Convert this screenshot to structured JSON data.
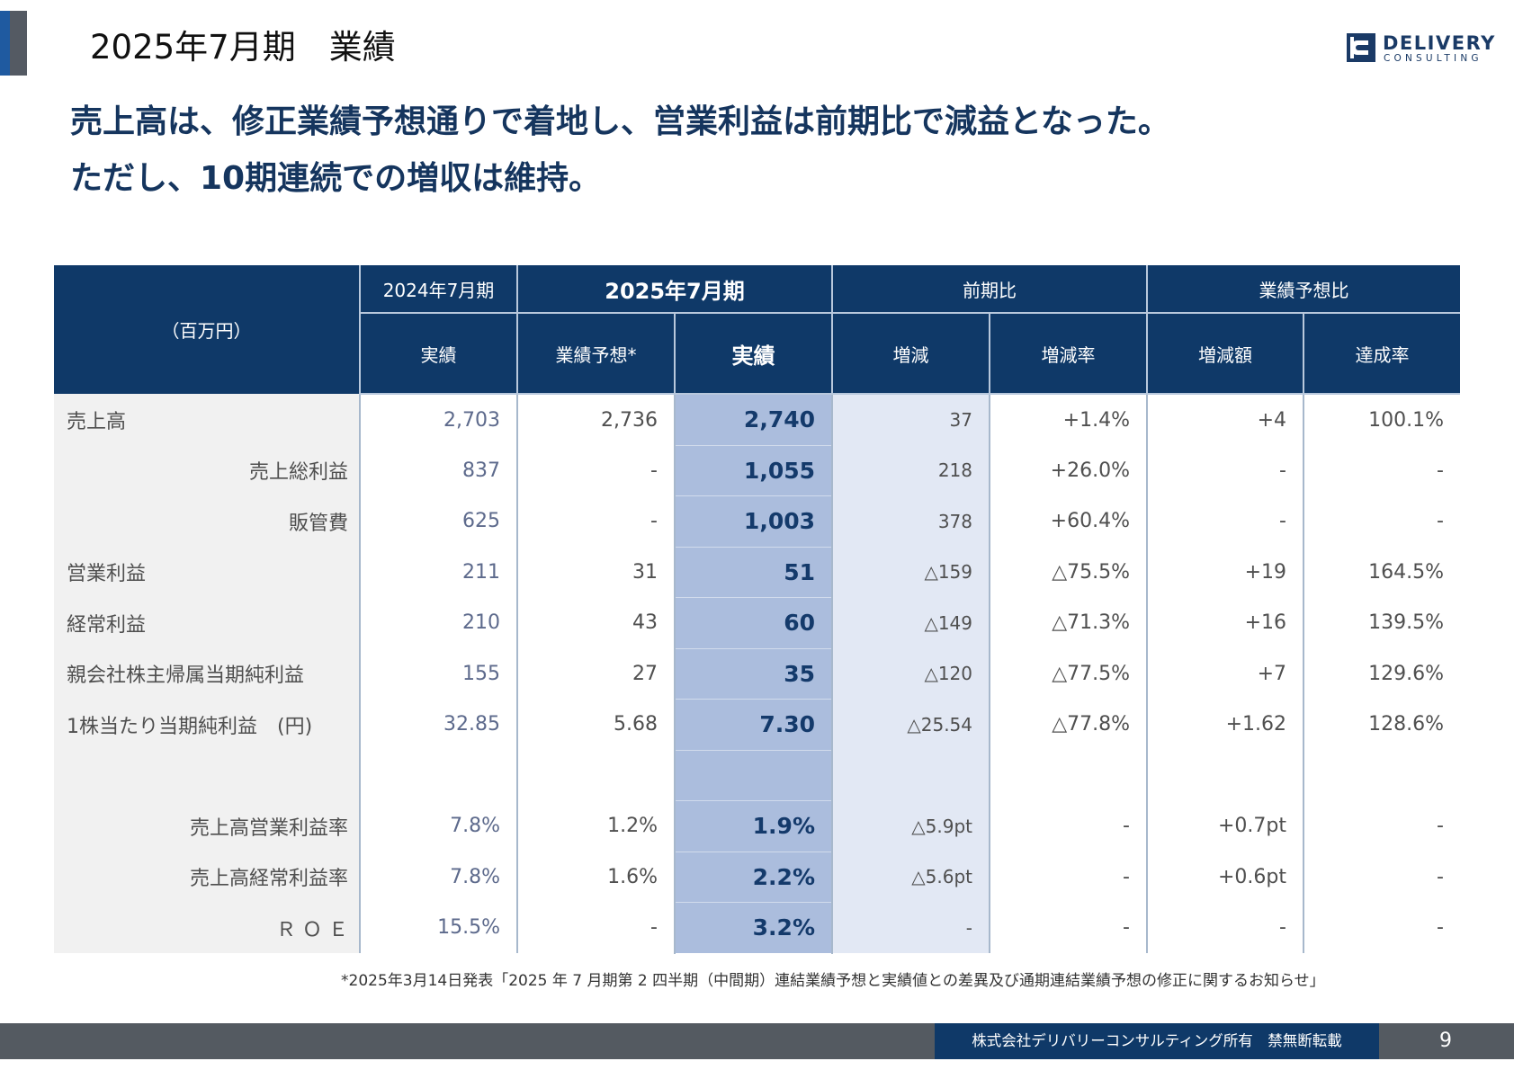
{
  "header": {
    "title": "2025年7月期　業績",
    "logo": {
      "main": "DELIVERY",
      "sub": "CONSULTING"
    }
  },
  "headline": {
    "line1": "売上高は、修正業績予想通りで着地し、営業利益は前期比で減益となった。",
    "line2": "ただし、10期連続での増収は維持。"
  },
  "table": {
    "unit_label": "（百万円）",
    "group_headers": {
      "prev_year": "2024年7月期",
      "current_year": "2025年7月期",
      "yoy": "前期比",
      "vs_forecast": "業績予想比"
    },
    "sub_headers": {
      "prev_actual": "実績",
      "forecast": "業績予想*",
      "actual": "実績",
      "yoy_change": "増減",
      "yoy_rate": "増減率",
      "fc_diff": "増減額",
      "fc_rate": "達成率"
    },
    "rows": [
      {
        "label": "売上高",
        "prev": "2,703",
        "forecast": "2,736",
        "actual": "2,740",
        "change": "37",
        "rate": "+1.4%",
        "diff": "+4",
        "achieve": "100.1%"
      },
      {
        "label": "売上総利益",
        "prev": "837",
        "forecast": "-",
        "actual": "1,055",
        "change": "218",
        "rate": "+26.0%",
        "diff": "-",
        "achieve": "-"
      },
      {
        "label": "販管費",
        "prev": "625",
        "forecast": "-",
        "actual": "1,003",
        "change": "378",
        "rate": "+60.4%",
        "diff": "-",
        "achieve": "-"
      },
      {
        "label": "営業利益",
        "prev": "211",
        "forecast": "31",
        "actual": "51",
        "change": "△159",
        "rate": "△75.5%",
        "diff": "+19",
        "achieve": "164.5%"
      },
      {
        "label": "経常利益",
        "prev": "210",
        "forecast": "43",
        "actual": "60",
        "change": "△149",
        "rate": "△71.3%",
        "diff": "+16",
        "achieve": "139.5%"
      },
      {
        "label": "親会社株主帰属当期純利益",
        "prev": "155",
        "forecast": "27",
        "actual": "35",
        "change": "△120",
        "rate": "△77.5%",
        "diff": "+7",
        "achieve": "129.6%"
      },
      {
        "label": "1株当たり当期純利益　(円)",
        "prev": "32.85",
        "forecast": "5.68",
        "actual": "7.30",
        "change": "△25.54",
        "rate": "△77.8%",
        "diff": "+1.62",
        "achieve": "128.6%"
      },
      {
        "label": "",
        "prev": "",
        "forecast": "",
        "actual": "",
        "change": "",
        "rate": "",
        "diff": "",
        "achieve": ""
      },
      {
        "label": "売上高営業利益率",
        "prev": "7.8%",
        "forecast": "1.2%",
        "actual": "1.9%",
        "change": "△5.9pt",
        "rate": "-",
        "diff": "+0.7pt",
        "achieve": "-"
      },
      {
        "label": "売上高経常利益率",
        "prev": "7.8%",
        "forecast": "1.6%",
        "actual": "2.2%",
        "change": "△5.6pt",
        "rate": "-",
        "diff": "+0.6pt",
        "achieve": "-"
      },
      {
        "label": "Ｒ Ｏ Ｅ",
        "prev": "15.5%",
        "forecast": "-",
        "actual": "3.2%",
        "change": "-",
        "rate": "-",
        "diff": "-",
        "achieve": "-"
      }
    ]
  },
  "footnote": "*2025年3月14日発表「2025 年 7 月期第 2 四半期（中間期）連結業績予想と実績値との差異及び通期連結業績予想の修正に関するお知らせ」",
  "footer": {
    "copyright": "株式会社デリバリーコンサルティング所有　禁無断転載",
    "page_number": "9"
  },
  "colors": {
    "navy": "#0f3968",
    "headline": "#15355e",
    "actual_column": "#abbddd",
    "change_column": "#e2e8f4",
    "label_column": "#f1f1f1",
    "accent_blue": "#1f5aa0",
    "gray": "#545a61"
  }
}
